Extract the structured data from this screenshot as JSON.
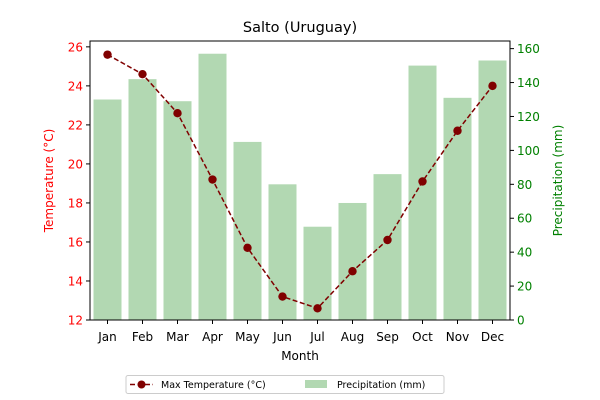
{
  "chart_data": {
    "type": "bar+line",
    "title": "Salto (Uruguay)",
    "xlabel": "Month",
    "ylabel_left": "Temperature (°C)",
    "ylabel_right": "Precipitation (mm)",
    "categories": [
      "Jan",
      "Feb",
      "Mar",
      "Apr",
      "May",
      "Jun",
      "Jul",
      "Aug",
      "Sep",
      "Oct",
      "Nov",
      "Dec"
    ],
    "y_left_lim": [
      12,
      26.3
    ],
    "y_left_ticks": [
      12,
      14,
      16,
      18,
      20,
      22,
      24,
      26
    ],
    "y_right_lim": [
      0,
      164.5
    ],
    "y_right_ticks": [
      0,
      20,
      40,
      60,
      80,
      100,
      120,
      140,
      160
    ],
    "series": [
      {
        "name": "Max Temperature (°C)",
        "kind": "line",
        "axis": "left",
        "color": "#800000",
        "values": [
          25.6,
          24.6,
          22.6,
          19.2,
          15.7,
          13.2,
          12.6,
          14.5,
          16.1,
          19.1,
          21.7,
          24.0
        ]
      },
      {
        "name": "Precipitation (mm)",
        "kind": "bar",
        "axis": "right",
        "color": "#b2d8b2",
        "values": [
          130,
          142,
          129,
          157,
          105,
          80,
          55,
          69,
          86,
          150,
          131,
          153
        ]
      }
    ],
    "left_axis_color": "#ff0000",
    "right_axis_color": "#008000",
    "grid": false,
    "legend_placement": "bottom-center"
  }
}
